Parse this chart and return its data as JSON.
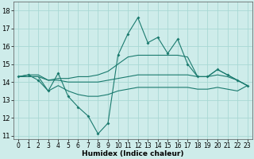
{
  "background_color": "#ceecea",
  "grid_color": "#a8d8d4",
  "line_color": "#1a7a6e",
  "xlabel": "Humidex (Indice chaleur)",
  "ylim": [
    10.8,
    18.5
  ],
  "xlim": [
    -0.5,
    23.5
  ],
  "yticks": [
    11,
    12,
    13,
    14,
    15,
    16,
    17,
    18
  ],
  "xticks": [
    0,
    1,
    2,
    3,
    4,
    5,
    6,
    7,
    8,
    9,
    10,
    11,
    12,
    13,
    14,
    15,
    16,
    17,
    18,
    19,
    20,
    21,
    22,
    23
  ],
  "series": {
    "jagged_line": [
      14.3,
      14.4,
      14.1,
      13.5,
      14.5,
      13.2,
      12.6,
      12.1,
      11.1,
      11.7,
      15.5,
      16.7,
      17.6,
      16.2,
      16.5,
      15.6,
      16.4,
      15.0,
      14.3,
      14.3,
      14.7,
      14.4,
      14.1,
      13.8
    ],
    "upper_line": [
      14.3,
      14.4,
      14.4,
      14.1,
      14.2,
      14.2,
      14.3,
      14.3,
      14.4,
      14.6,
      15.0,
      15.4,
      15.5,
      15.5,
      15.5,
      15.5,
      15.5,
      15.4,
      14.3,
      14.3,
      14.7,
      14.4,
      14.1,
      13.8
    ],
    "middle_line": [
      14.3,
      14.3,
      14.3,
      14.1,
      14.1,
      14.0,
      14.0,
      14.0,
      14.0,
      14.1,
      14.2,
      14.3,
      14.4,
      14.4,
      14.4,
      14.4,
      14.4,
      14.4,
      14.3,
      14.3,
      14.4,
      14.3,
      14.1,
      13.8
    ],
    "lower_line": [
      14.3,
      14.3,
      14.3,
      13.5,
      13.8,
      13.5,
      13.3,
      13.2,
      13.2,
      13.3,
      13.5,
      13.6,
      13.7,
      13.7,
      13.7,
      13.7,
      13.7,
      13.7,
      13.6,
      13.6,
      13.7,
      13.6,
      13.5,
      13.8
    ]
  }
}
